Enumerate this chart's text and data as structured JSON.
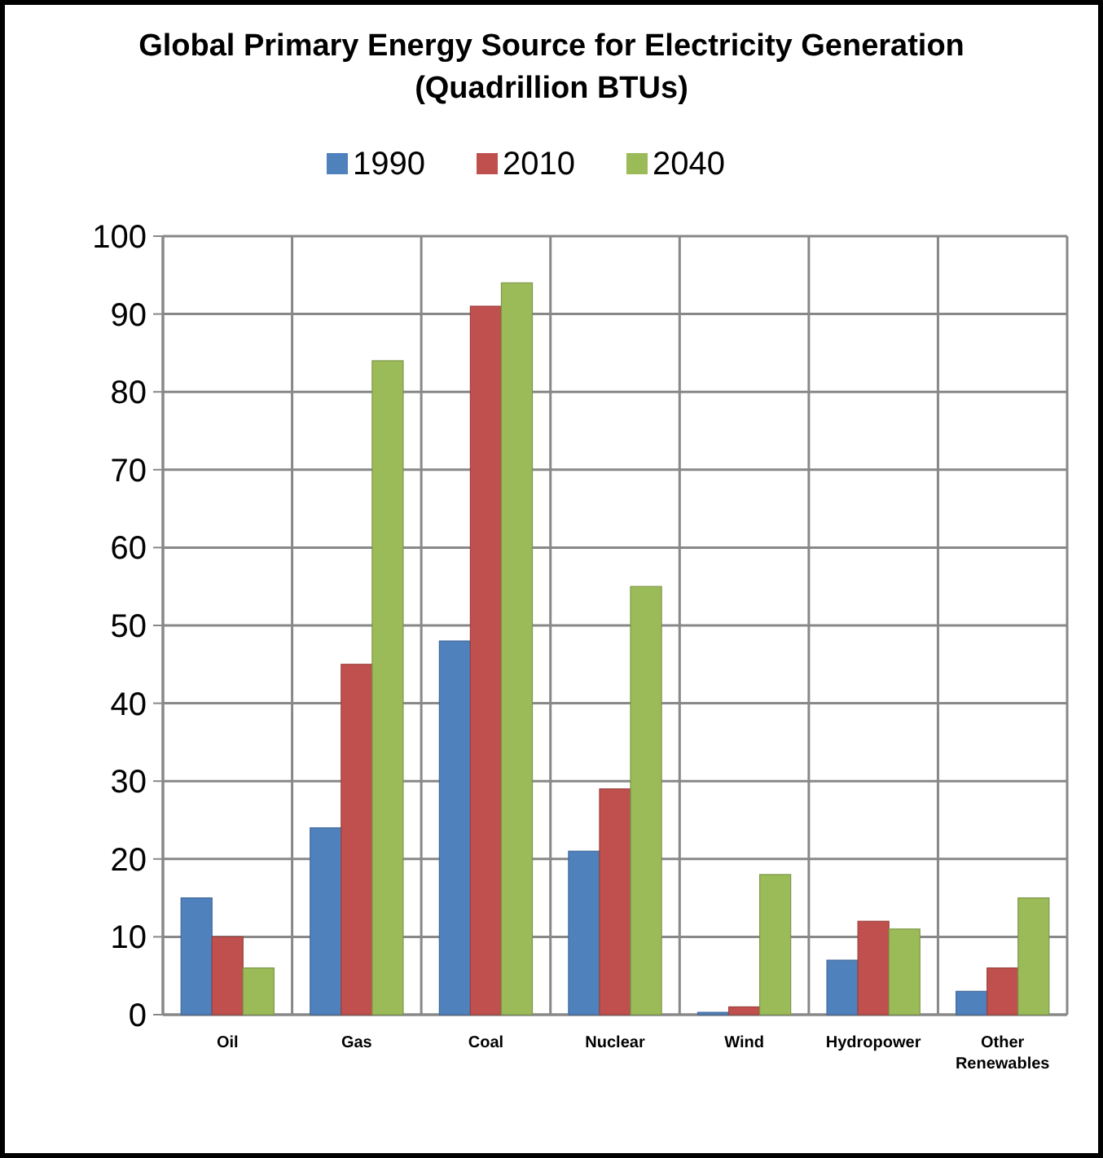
{
  "chart_data": {
    "type": "bar",
    "title": "Global Primary Energy Source for Electricity Generation",
    "subtitle": "(Quadrillion BTUs)",
    "categories": [
      "Oil",
      "Gas",
      "Coal",
      "Nuclear",
      "Wind",
      "Hydropower",
      "Other Renewables"
    ],
    "series": [
      {
        "name": "1990",
        "color": "#4f81bd",
        "values": [
          15,
          24,
          48,
          21,
          0.3,
          7,
          3
        ]
      },
      {
        "name": "2010",
        "color": "#c0504d",
        "values": [
          10,
          45,
          91,
          29,
          1,
          12,
          6
        ]
      },
      {
        "name": "2040",
        "color": "#9bbb59",
        "values": [
          6,
          84,
          94,
          55,
          18,
          11,
          15
        ]
      }
    ],
    "ylim": [
      0,
      100
    ],
    "yticks": [
      0,
      10,
      20,
      30,
      40,
      50,
      60,
      70,
      80,
      90,
      100
    ],
    "grid": true,
    "legend": "top"
  }
}
